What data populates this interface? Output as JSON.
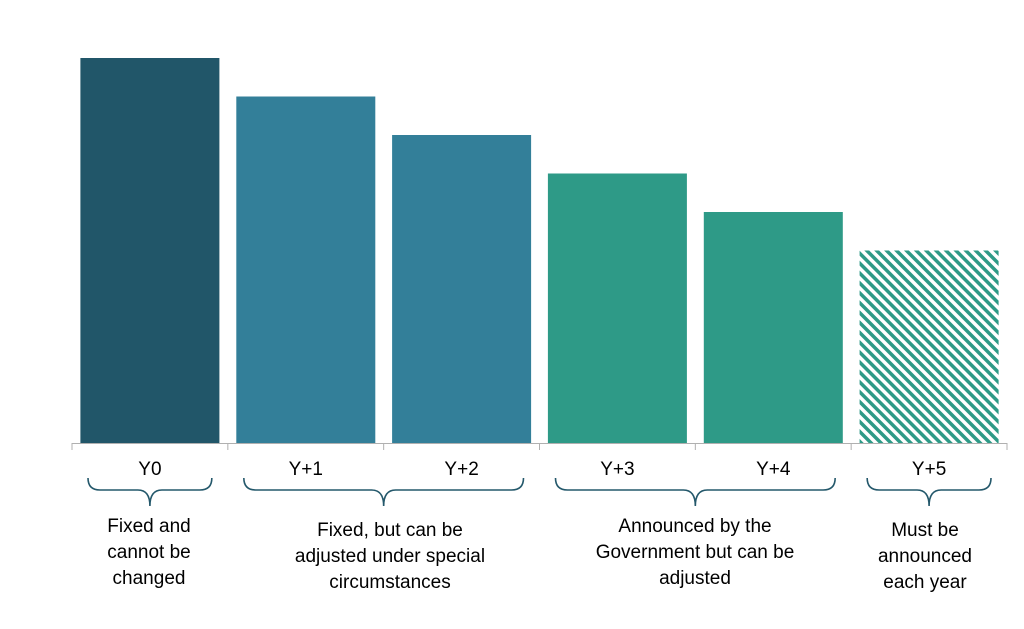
{
  "chart_data": {
    "type": "bar",
    "title": "",
    "xlabel": "",
    "ylabel": "",
    "categories": [
      "Y0",
      "Y+1",
      "Y+2",
      "Y+3",
      "Y+4",
      "Y+5"
    ],
    "values": [
      100,
      90,
      80,
      70,
      60,
      50
    ],
    "ylim": [
      0,
      100
    ],
    "bar_styles": [
      "solid",
      "solid",
      "solid",
      "solid",
      "solid",
      "hatched"
    ],
    "bar_colors": [
      "#215669",
      "#337f99",
      "#337f99",
      "#2e9a87",
      "#2e9a87",
      "#2e9a87"
    ],
    "grid": false,
    "legend": "none",
    "groups": [
      {
        "label": "Fixed and\ncannot be\nchanged",
        "categories": [
          "Y0"
        ]
      },
      {
        "label": "Fixed, but can be\nadjusted under special\ncircumstances",
        "categories": [
          "Y+1",
          "Y+2"
        ]
      },
      {
        "label": "Announced by the\nGovernment but can be\nadjusted",
        "categories": [
          "Y+3",
          "Y+4"
        ]
      },
      {
        "label": "Must be\nannounced\neach year",
        "categories": [
          "Y+5"
        ]
      }
    ]
  },
  "colors": {
    "axis": "#b0b0b0",
    "brace": "#24586b",
    "hatch_background": "#ffffff"
  }
}
